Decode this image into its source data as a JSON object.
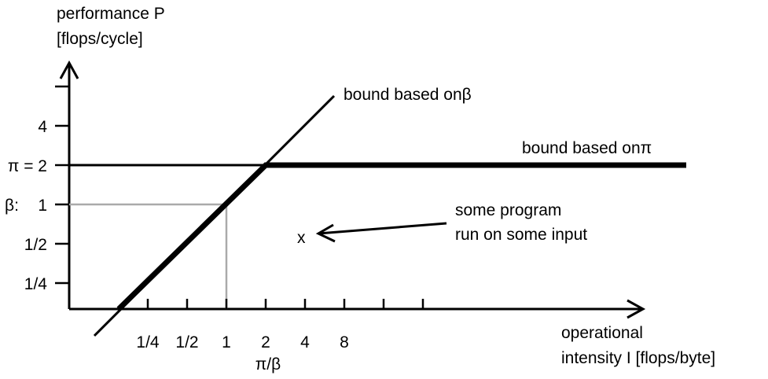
{
  "chart_data": {
    "type": "line",
    "scale": "log2-log2",
    "ylabel": [
      "performance P",
      "[flops/cycle]"
    ],
    "xlabel": [
      "operational",
      "intensity I  [flops/byte]"
    ],
    "x_ticks": [
      {
        "label": "1/4",
        "value": 0.25
      },
      {
        "label": "1/2",
        "value": 0.5
      },
      {
        "label": "1",
        "value": 1
      },
      {
        "label": "2",
        "value": 2
      },
      {
        "label": "4",
        "value": 4
      },
      {
        "label": "8",
        "value": 8
      },
      {
        "label": "",
        "value": 16
      },
      {
        "label": "",
        "value": 32
      }
    ],
    "x_special_label": "π/β",
    "y_ticks": [
      {
        "label": "1/4",
        "value": 0.25
      },
      {
        "label": "1/2",
        "value": 0.5
      },
      {
        "label": "1",
        "value": 1
      },
      {
        "label": "π = 2",
        "value": 2
      },
      {
        "label": "4",
        "value": 4
      },
      {
        "label": "",
        "value": 8
      }
    ],
    "y_prefix_label": "β:",
    "pi": 2,
    "beta": 1,
    "series": [
      {
        "name": "bound based onβ"
      },
      {
        "name": "bound based onπ"
      }
    ],
    "point": {
      "marker": "x",
      "label": [
        "some program",
        "run on some input"
      ]
    },
    "guide_color": "#aaaaaa",
    "line_color": "#000000"
  }
}
